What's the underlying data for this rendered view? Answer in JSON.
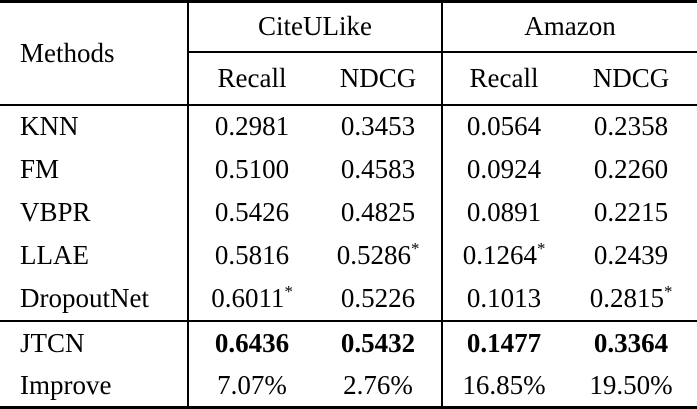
{
  "table": {
    "methods_header": "Methods",
    "groups": [
      {
        "label": "CiteULike",
        "columns": [
          "Recall",
          "NDCG"
        ]
      },
      {
        "label": "Amazon",
        "columns": [
          "Recall",
          "NDCG"
        ]
      }
    ],
    "rows": [
      {
        "method": "KNN",
        "values": [
          "0.2981",
          "0.3453",
          "0.0564",
          "0.2358"
        ],
        "bold": false
      },
      {
        "method": "FM",
        "values": [
          "0.5100",
          "0.4583",
          "0.0924",
          "0.2260"
        ],
        "bold": false
      },
      {
        "method": "VBPR",
        "values": [
          "0.5426",
          "0.4825",
          "0.0891",
          "0.2215"
        ],
        "bold": false
      },
      {
        "method": "LLAE",
        "values": [
          "0.5816",
          "0.5286*",
          "0.1264*",
          "0.2439"
        ],
        "bold": false
      },
      {
        "method": "DropoutNet",
        "values": [
          "0.6011*",
          "0.5226",
          "0.1013",
          "0.2815*"
        ],
        "bold": false
      }
    ],
    "highlight_rows": [
      {
        "method": "JTCN",
        "values": [
          "0.6436",
          "0.5432",
          "0.1477",
          "0.3364"
        ],
        "bold": true
      },
      {
        "method": "Improve",
        "values": [
          "7.07%",
          "2.76%",
          "16.85%",
          "19.50%"
        ],
        "bold": false
      }
    ]
  },
  "colors": {
    "text": "#000000",
    "background": "#ffffff",
    "rule": "#000000"
  }
}
